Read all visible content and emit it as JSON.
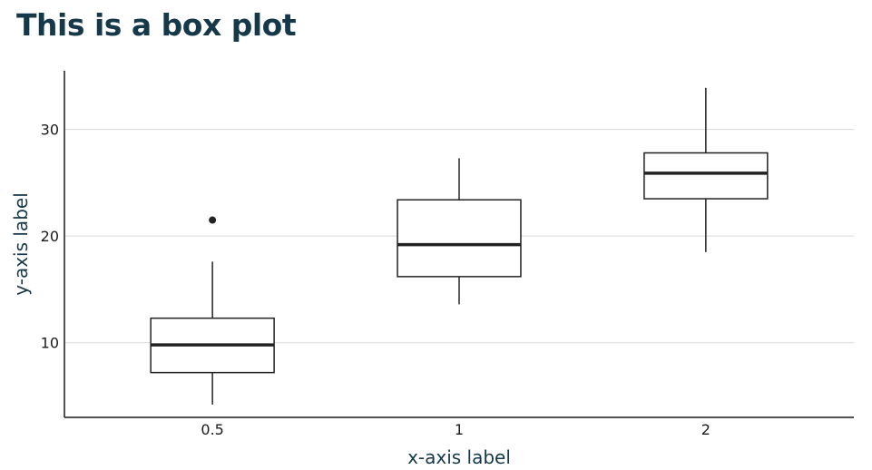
{
  "chart_data": {
    "type": "box",
    "title": "This is a box plot",
    "xlabel": "x-axis label",
    "ylabel": "y-axis label",
    "categories": [
      "0.5",
      "1",
      "2"
    ],
    "ylim": [
      3,
      35.5
    ],
    "yticks": [
      10,
      20,
      30
    ],
    "grid": "horizontal",
    "boxes": [
      {
        "category": "0.5",
        "whisker_low": 4.2,
        "q1": 7.2,
        "median": 9.8,
        "q3": 12.3,
        "whisker_high": 17.6,
        "outliers": [
          21.5
        ]
      },
      {
        "category": "1",
        "whisker_low": 13.6,
        "q1": 16.2,
        "median": 19.2,
        "q3": 23.4,
        "whisker_high": 27.3,
        "outliers": []
      },
      {
        "category": "2",
        "whisker_low": 18.5,
        "q1": 23.5,
        "median": 25.9,
        "q3": 27.8,
        "whisker_high": 33.9,
        "outliers": []
      }
    ]
  }
}
